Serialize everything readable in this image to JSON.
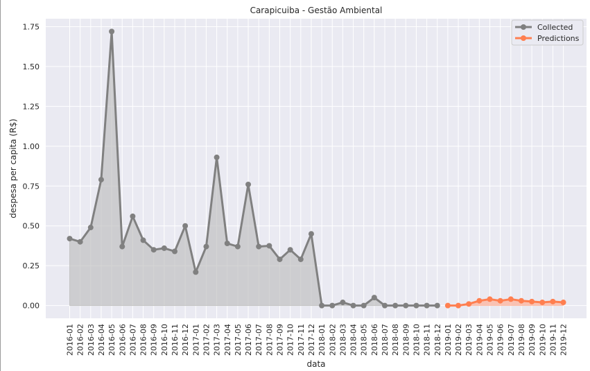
{
  "colors": {
    "background": "#eaeaf2",
    "grid": "#ffffff",
    "collected": "#808080",
    "collected_fill": "#bdbdbd",
    "predictions": "#ff7f50",
    "predictions_fill": "#ffb199"
  },
  "chart_data": {
    "type": "line",
    "title": "Carapicuiba - Gestão Ambiental",
    "xlabel": "data",
    "ylabel": "despesa per capita (R$)",
    "ylim": [
      -0.08,
      1.8
    ],
    "yticks": [
      "0.00",
      "0.25",
      "0.50",
      "0.75",
      "1.00",
      "1.25",
      "1.50",
      "1.75"
    ],
    "grid": true,
    "legend_placement": "top-right",
    "categories": [
      "2016-01",
      "2016-02",
      "2016-03",
      "2016-04",
      "2016-05",
      "2016-06",
      "2016-07",
      "2016-08",
      "2016-09",
      "2016-10",
      "2016-11",
      "2016-12",
      "2017-01",
      "2017-02",
      "2017-03",
      "2017-04",
      "2017-05",
      "2017-06",
      "2017-07",
      "2017-08",
      "2017-09",
      "2017-10",
      "2017-11",
      "2017-12",
      "2018-01",
      "2018-02",
      "2018-03",
      "2018-04",
      "2018-05",
      "2018-06",
      "2018-07",
      "2018-08",
      "2018-09",
      "2018-10",
      "2018-11",
      "2018-12",
      "2019-01",
      "2019-02",
      "2019-03",
      "2019-04",
      "2019-05",
      "2019-06",
      "2019-07",
      "2019-08",
      "2019-09",
      "2019-10",
      "2019-11",
      "2019-12"
    ],
    "series": [
      {
        "name": "Collected",
        "values": [
          0.42,
          0.4,
          0.49,
          0.79,
          1.72,
          0.37,
          0.56,
          0.41,
          0.35,
          0.36,
          0.34,
          0.5,
          0.21,
          0.37,
          0.93,
          0.39,
          0.37,
          0.76,
          0.37,
          0.375,
          0.29,
          0.35,
          0.29,
          0.45,
          0.0,
          0.0,
          0.02,
          0.0,
          0.0,
          0.05,
          0.0,
          0.0,
          0.0,
          0.0,
          0.0,
          0.0,
          null,
          null,
          null,
          null,
          null,
          null,
          null,
          null,
          null,
          null,
          null,
          null
        ]
      },
      {
        "name": "Predictions",
        "values": [
          null,
          null,
          null,
          null,
          null,
          null,
          null,
          null,
          null,
          null,
          null,
          null,
          null,
          null,
          null,
          null,
          null,
          null,
          null,
          null,
          null,
          null,
          null,
          null,
          null,
          null,
          null,
          null,
          null,
          null,
          null,
          null,
          null,
          null,
          null,
          null,
          0.0,
          0.0,
          0.01,
          0.03,
          0.04,
          0.03,
          0.04,
          0.03,
          0.025,
          0.02,
          0.025,
          0.02
        ]
      }
    ]
  }
}
